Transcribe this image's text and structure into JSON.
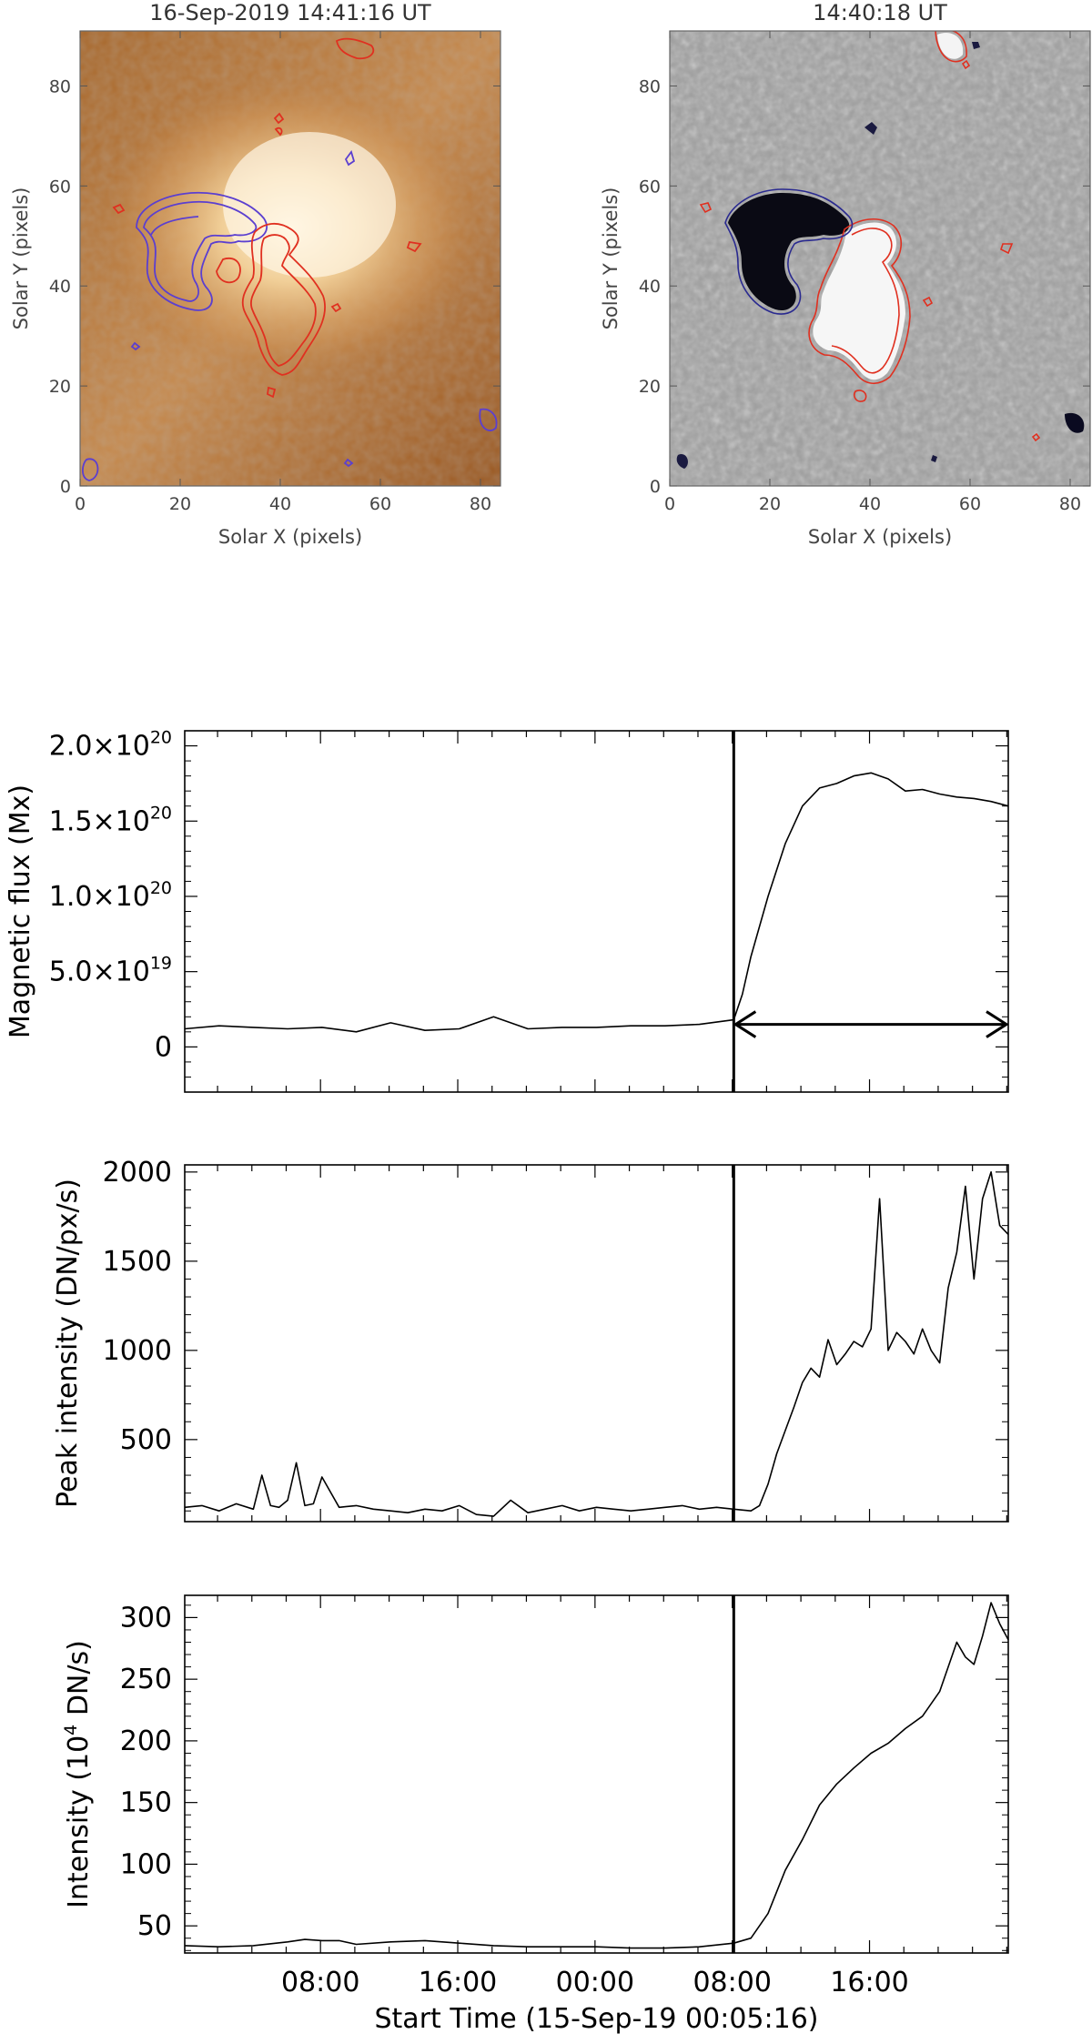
{
  "images": [
    {
      "title": "16-Sep-2019 14:41:16 UT",
      "xlabel": "Solar X (pixels)",
      "ylabel": "Solar Y (pixels)",
      "xticks": [
        "0",
        "20",
        "40",
        "60",
        "80"
      ],
      "yticks": [
        "0",
        "20",
        "40",
        "60",
        "80"
      ],
      "xlim": [
        0,
        84
      ],
      "ylim": [
        0,
        91
      ],
      "colormap": "sdo-aia-orange",
      "contour_colors": {
        "positive": "#e03020",
        "negative": "#5b3fd0"
      }
    },
    {
      "title": "14:40:18 UT",
      "xlabel": "Solar X (pixels)",
      "ylabel": "Solar Y (pixels)",
      "xticks": [
        "0",
        "20",
        "40",
        "60",
        "80"
      ],
      "yticks": [
        "0",
        "20",
        "40",
        "60",
        "80"
      ],
      "xlim": [
        0,
        84
      ],
      "ylim": [
        0,
        91
      ],
      "colormap": "grayscale-magnetogram",
      "contour_colors": {
        "positive": "#e03020",
        "negative": "#2a2a90"
      }
    }
  ],
  "chart_data": [
    {
      "type": "line",
      "ylabel": "Magnetic flux (Mx)",
      "ylim": [
        -3e+19,
        2.1e+20
      ],
      "yticks": [
        {
          "value": 0,
          "mant": "0",
          "exp": ""
        },
        {
          "value": 5e+19,
          "mant": "5.0×10",
          "exp": "19"
        },
        {
          "value": 1e+20,
          "mant": "1.0×10",
          "exp": "20"
        },
        {
          "value": 1.5e+20,
          "mant": "1.5×10",
          "exp": "20"
        },
        {
          "value": 2e+20,
          "mant": "2.0×10",
          "exp": "20"
        }
      ],
      "series": [
        {
          "x_hours": [
            0,
            2,
            4,
            6,
            8,
            10,
            12,
            14,
            16,
            18,
            20,
            22,
            24,
            26,
            28,
            30,
            32,
            32.5,
            33,
            34,
            35,
            36,
            37,
            38,
            39,
            40,
            41,
            42,
            43,
            44,
            45,
            46,
            47,
            48
          ],
          "values": [
            1.2e+19,
            1.4e+19,
            1.3e+19,
            1.2e+19,
            1.3e+19,
            1e+19,
            1.6e+19,
            1.1e+19,
            1.2e+19,
            2e+19,
            1.2e+19,
            1.3e+19,
            1.3e+19,
            1.4e+19,
            1.4e+19,
            1.5e+19,
            1.8e+19,
            3.5e+19,
            6e+19,
            1e+20,
            1.35e+20,
            1.6e+20,
            1.72e+20,
            1.75e+20,
            1.8e+20,
            1.82e+20,
            1.78e+20,
            1.7e+20,
            1.71e+20,
            1.68e+20,
            1.66e+20,
            1.65e+20,
            1.63e+20,
            1.6e+20
          ]
        }
      ],
      "annotations": {
        "vline_hour": 32,
        "arrow_from_hour": 32,
        "arrow_to_hour": 48,
        "arrow_value": 1.5e+19
      }
    },
    {
      "type": "line",
      "ylabel": "Peak intensity (DN/px/s)",
      "ylim": [
        40,
        2040
      ],
      "yticks": [
        500,
        1000,
        1500,
        2000
      ],
      "series": [
        {
          "x_hours": [
            0,
            1,
            2,
            3,
            4,
            4.5,
            5,
            5.5,
            6,
            6.5,
            7,
            7.5,
            8,
            9,
            10,
            11,
            12,
            13,
            14,
            15,
            16,
            17,
            18,
            19,
            20,
            21,
            22,
            23,
            24,
            25,
            26,
            27,
            28,
            29,
            30,
            31,
            32,
            33,
            33.5,
            34,
            34.5,
            35,
            35.5,
            36,
            36.5,
            37,
            37.5,
            38,
            38.5,
            39,
            39.5,
            40,
            40.5,
            41,
            41.5,
            42,
            42.5,
            43,
            43.5,
            44,
            44.5,
            45,
            45.5,
            46,
            46.5,
            47,
            47.5,
            48
          ],
          "values": [
            120,
            130,
            100,
            140,
            110,
            300,
            130,
            120,
            160,
            370,
            130,
            140,
            290,
            120,
            130,
            110,
            100,
            90,
            110,
            100,
            130,
            80,
            70,
            160,
            90,
            110,
            130,
            100,
            120,
            110,
            100,
            110,
            120,
            130,
            110,
            120,
            110,
            100,
            130,
            250,
            420,
            550,
            680,
            820,
            900,
            850,
            1060,
            920,
            980,
            1050,
            1020,
            1120,
            1850,
            1000,
            1100,
            1050,
            980,
            1120,
            1000,
            930,
            1350,
            1550,
            1920,
            1400,
            1850,
            2000,
            1700,
            1650
          ]
        }
      ],
      "annotations": {
        "vline_hour": 32
      }
    },
    {
      "type": "line",
      "ylabel": "Intensity (10",
      "ylabel_exp": "4",
      "ylabel_tail": " DN/s)",
      "ylim": [
        28,
        318
      ],
      "yticks": [
        50,
        100,
        150,
        200,
        250,
        300
      ],
      "xticks": [
        {
          "value": 7.913,
          "label": "08:00"
        },
        {
          "value": 15.913,
          "label": "16:00"
        },
        {
          "value": 23.913,
          "label": "00:00"
        },
        {
          "value": 31.913,
          "label": "08:00"
        },
        {
          "value": 39.913,
          "label": "16:00"
        }
      ],
      "xlim": [
        0,
        48
      ],
      "xlabel": "Start Time (15-Sep-19 00:05:16)",
      "series": [
        {
          "x_hours": [
            0,
            2,
            4,
            6,
            7,
            8,
            9,
            10,
            12,
            14,
            16,
            18,
            20,
            22,
            24,
            26,
            28,
            30,
            32,
            33,
            34,
            35,
            36,
            37,
            38,
            39,
            40,
            41,
            42,
            43,
            44,
            44.5,
            45,
            45.5,
            46,
            46.5,
            47,
            47.5,
            48
          ],
          "values": [
            34,
            33,
            34,
            37,
            39,
            38,
            38,
            35,
            37,
            38,
            36,
            34,
            33,
            33,
            33,
            32,
            32,
            33,
            36,
            40,
            60,
            95,
            120,
            148,
            165,
            178,
            190,
            198,
            210,
            220,
            240,
            260,
            280,
            268,
            262,
            285,
            312,
            295,
            282
          ]
        }
      ],
      "annotations": {
        "vline_hour": 32
      }
    }
  ]
}
